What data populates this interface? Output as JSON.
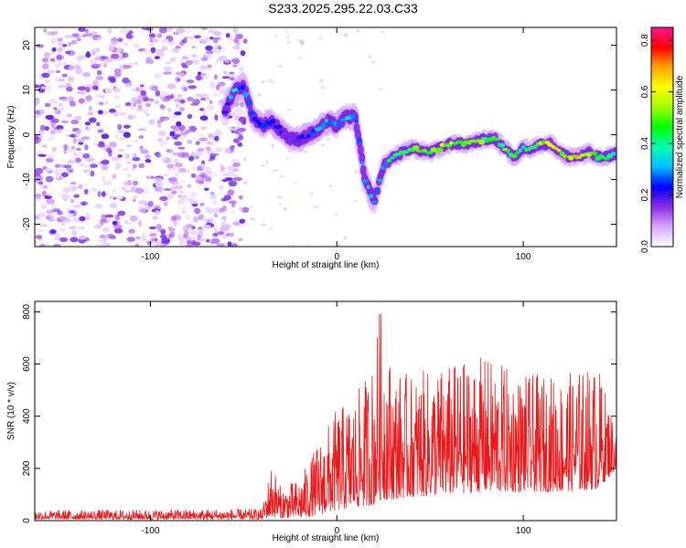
{
  "title": "S233.2025.295.22.03.C33",
  "chart_data": [
    {
      "type": "heatmap",
      "title": "S233.2025.295.22.03.C33",
      "xlabel": "Height of straight line (km)",
      "ylabel": "Frequency (Hz)",
      "xlim": [
        -162,
        150
      ],
      "ylim": [
        -25,
        24
      ],
      "xticks": [
        -100,
        0,
        100
      ],
      "xtick_labels": [
        "-100",
        "0",
        "100"
      ],
      "yticks": [
        -20,
        -10,
        0,
        10,
        20
      ],
      "ytick_labels": [
        "-20",
        "-10",
        "0",
        "10",
        "20"
      ],
      "colorbar": {
        "label": "Normalized spectral amplitude",
        "range": [
          0,
          0.85
        ],
        "ticks": [
          0,
          0.2,
          0.4,
          0.6,
          0.8
        ],
        "tick_labels": [
          "0.0",
          "0.2",
          "0.4",
          "0.6",
          "0.8"
        ],
        "colors": [
          "#ffffff",
          "#d7a8ff",
          "#8a2be2",
          "#0000ff",
          "#00bfff",
          "#00ffb0",
          "#00ff00",
          "#a0ff00",
          "#ffff00",
          "#ffa500",
          "#ff0000",
          "#ff1493"
        ]
      },
      "ridge": {
        "x": [
          -60,
          -55,
          -50,
          -45,
          -40,
          -35,
          -30,
          -25,
          -20,
          -15,
          -10,
          -5,
          0,
          5,
          10,
          15,
          20,
          25,
          30,
          40,
          50,
          60,
          70,
          80,
          85,
          90,
          95,
          100,
          105,
          110,
          115,
          120,
          125,
          130,
          135,
          140,
          145,
          150
        ],
        "freq": [
          5,
          10,
          11,
          4,
          2,
          3,
          1,
          -1,
          -1,
          0,
          1,
          3,
          2,
          4,
          4,
          -10,
          -15,
          -7,
          -5,
          -3,
          -4,
          -2,
          -2,
          -1,
          -1,
          -3,
          -5,
          -3,
          -3,
          -2,
          -2,
          -4,
          -5,
          -5,
          -4,
          -5,
          -5,
          -4
        ],
        "amplitude": [
          0.25,
          0.35,
          0.3,
          0.25,
          0.25,
          0.3,
          0.2,
          0.15,
          0.2,
          0.25,
          0.3,
          0.35,
          0.3,
          0.4,
          0.25,
          0.35,
          0.35,
          0.35,
          0.45,
          0.5,
          0.55,
          0.6,
          0.55,
          0.5,
          0.45,
          0.5,
          0.45,
          0.45,
          0.5,
          0.6,
          0.75,
          0.6,
          0.55,
          0.7,
          0.55,
          0.5,
          0.5,
          0.4
        ]
      },
      "noise_region_x": [
        -162,
        -55
      ]
    },
    {
      "type": "line",
      "xlabel": "Height of straight line (km)",
      "ylabel": "SNR (10 * v/v)",
      "xlim": [
        -162,
        150
      ],
      "ylim": [
        0,
        840
      ],
      "xticks": [
        -100,
        0,
        100
      ],
      "xtick_labels": [
        "-100",
        "0",
        "100"
      ],
      "yticks": [
        0,
        200,
        400,
        600,
        800
      ],
      "ytick_labels": [
        "0",
        "200",
        "400",
        "600",
        "800"
      ],
      "series": [
        {
          "name": "SNR",
          "color": "#e8191b",
          "envelope_x": [
            -162,
            -40,
            -35,
            -30,
            -20,
            -10,
            0,
            10,
            20,
            23,
            30,
            40,
            60,
            80,
            100,
            120,
            140,
            150
          ],
          "envelope_low": [
            5,
            5,
            15,
            10,
            10,
            20,
            40,
            50,
            60,
            80,
            80,
            90,
            100,
            110,
            110,
            110,
            120,
            200
          ],
          "envelope_high": [
            40,
            45,
            230,
            130,
            160,
            300,
            430,
            480,
            620,
            830,
            580,
            560,
            600,
            630,
            560,
            560,
            600,
            360
          ]
        }
      ]
    }
  ]
}
